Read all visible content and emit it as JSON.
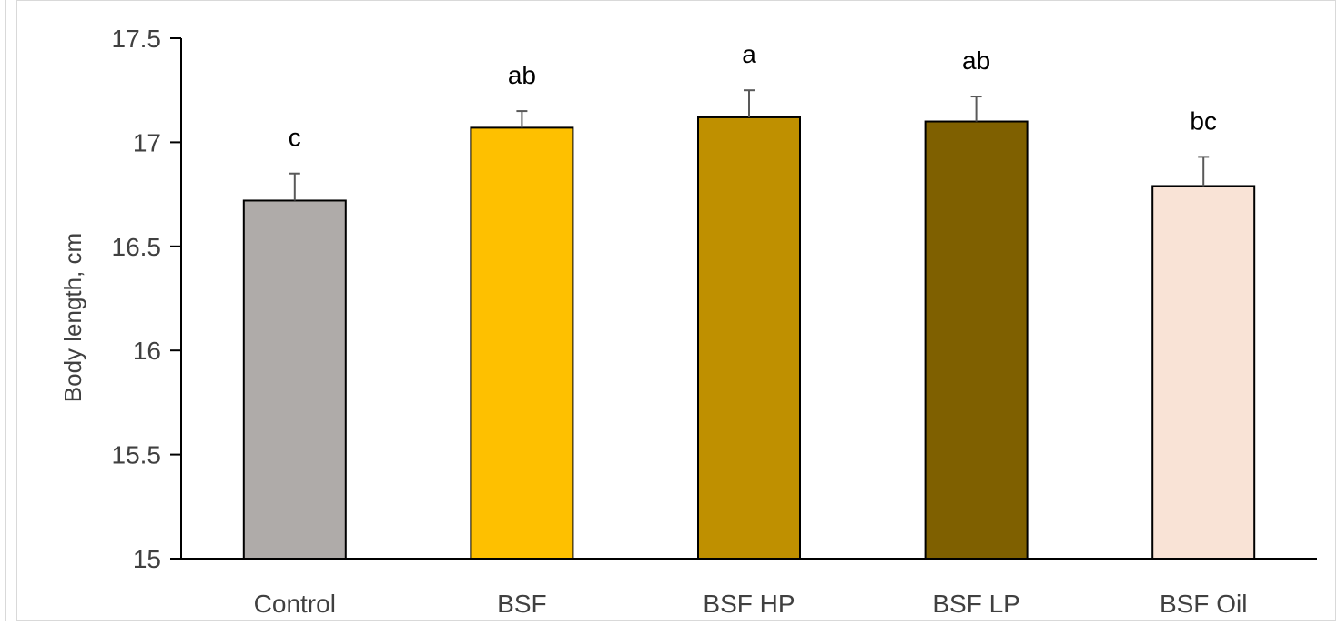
{
  "chart_data": {
    "type": "bar",
    "title": "",
    "xlabel": "",
    "ylabel": "Body length, cm",
    "ylim": [
      15,
      17.5
    ],
    "yticks": [
      "15",
      "15.5",
      "16",
      "16.5",
      "17",
      "17.5"
    ],
    "grid": false,
    "categories": [
      "Control",
      "BSF",
      "BSF HP",
      "BSF LP",
      "BSF Oil"
    ],
    "values": [
      16.72,
      17.07,
      17.12,
      17.1,
      16.79
    ],
    "errors": [
      0.13,
      0.08,
      0.13,
      0.12,
      0.14
    ],
    "significance": [
      "c",
      "ab",
      "a",
      "ab",
      "bc"
    ],
    "colors": [
      "#afaba9",
      "#fec000",
      "#bf9000",
      "#7f6000",
      "#f9e3d6"
    ],
    "bar_border": "#000000",
    "axis_color": "#000000"
  }
}
